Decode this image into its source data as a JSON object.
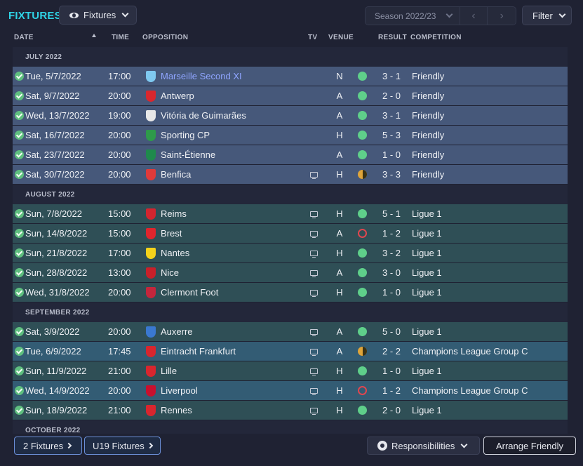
{
  "header": {
    "title": "FIXTURES",
    "view_label": "Fixtures",
    "season_label": "Season 2022/23",
    "filter_label": "Filter"
  },
  "columns": {
    "date": "DATE",
    "time": "TIME",
    "opposition": "OPPOSITION",
    "tv": "TV",
    "venue": "VENUE",
    "result": "RESULT",
    "competition": "COMPETITION"
  },
  "colors": {
    "accent": "#2fd3e6",
    "win": "#5fcf8a",
    "draw": "#e0a53a",
    "loss": "#e0464f"
  },
  "months": [
    {
      "label": "JULY 2022",
      "fixtures": [
        {
          "date": "Tue, 5/7/2022",
          "time": "17:00",
          "opposition": "Marseille Second XI",
          "tv": false,
          "venue": "N",
          "result": "win",
          "score": "3 - 1",
          "competition": "Friendly",
          "type": "friendly",
          "link": true,
          "crest_color": "#7fc9f0",
          "crest_icon": "marseille-crest-icon"
        },
        {
          "date": "Sat, 9/7/2022",
          "time": "20:00",
          "opposition": "Antwerp",
          "tv": false,
          "venue": "A",
          "result": "win",
          "score": "2 - 0",
          "competition": "Friendly",
          "type": "friendly",
          "crest_color": "#d9272e",
          "crest_icon": "antwerp-crest-icon"
        },
        {
          "date": "Wed, 13/7/2022",
          "time": "19:00",
          "opposition": "Vitória de Guimarães",
          "tv": false,
          "venue": "A",
          "result": "win",
          "score": "3 - 1",
          "competition": "Friendly",
          "type": "friendly",
          "crest_color": "#e8e8e8",
          "crest_icon": "guimaraes-crest-icon"
        },
        {
          "date": "Sat, 16/7/2022",
          "time": "20:00",
          "opposition": "Sporting CP",
          "tv": false,
          "venue": "H",
          "result": "win",
          "score": "5 - 3",
          "competition": "Friendly",
          "type": "friendly",
          "crest_color": "#2e9a4a",
          "crest_icon": "sporting-crest-icon"
        },
        {
          "date": "Sat, 23/7/2022",
          "time": "20:00",
          "opposition": "Saint-Étienne",
          "tv": false,
          "venue": "A",
          "result": "win",
          "score": "1 - 0",
          "competition": "Friendly",
          "type": "friendly",
          "crest_color": "#1f8a4c",
          "crest_icon": "saint-etienne-crest-icon"
        },
        {
          "date": "Sat, 30/7/2022",
          "time": "20:00",
          "opposition": "Benfica",
          "tv": true,
          "venue": "H",
          "result": "draw",
          "score": "3 - 3",
          "competition": "Friendly",
          "type": "friendly",
          "crest_color": "#e03a3a",
          "crest_icon": "benfica-crest-icon"
        }
      ]
    },
    {
      "label": "AUGUST 2022",
      "fixtures": [
        {
          "date": "Sun, 7/8/2022",
          "time": "15:00",
          "opposition": "Reims",
          "tv": true,
          "venue": "H",
          "result": "win",
          "score": "5 - 1",
          "competition": "Ligue 1",
          "type": "league",
          "crest_color": "#d3252f",
          "crest_icon": "reims-crest-icon"
        },
        {
          "date": "Sun, 14/8/2022",
          "time": "15:00",
          "opposition": "Brest",
          "tv": true,
          "venue": "A",
          "result": "loss",
          "score": "1 - 2",
          "competition": "Ligue 1",
          "type": "league",
          "crest_color": "#e0252d",
          "crest_icon": "brest-crest-icon"
        },
        {
          "date": "Sun, 21/8/2022",
          "time": "17:00",
          "opposition": "Nantes",
          "tv": true,
          "venue": "H",
          "result": "win",
          "score": "3 - 2",
          "competition": "Ligue 1",
          "type": "league",
          "crest_color": "#f5d21a",
          "crest_icon": "nantes-crest-icon"
        },
        {
          "date": "Sun, 28/8/2022",
          "time": "13:00",
          "opposition": "Nice",
          "tv": true,
          "venue": "A",
          "result": "win",
          "score": "3 - 0",
          "competition": "Ligue 1",
          "type": "league",
          "crest_color": "#c8202a",
          "crest_icon": "nice-crest-icon"
        },
        {
          "date": "Wed, 31/8/2022",
          "time": "20:00",
          "opposition": "Clermont Foot",
          "tv": true,
          "venue": "H",
          "result": "win",
          "score": "1 - 0",
          "competition": "Ligue 1",
          "type": "league",
          "crest_color": "#c4263c",
          "crest_icon": "clermont-crest-icon"
        }
      ]
    },
    {
      "label": "SEPTEMBER 2022",
      "fixtures": [
        {
          "date": "Sat, 3/9/2022",
          "time": "20:00",
          "opposition": "Auxerre",
          "tv": true,
          "venue": "A",
          "result": "win",
          "score": "5 - 0",
          "competition": "Ligue 1",
          "type": "league",
          "crest_color": "#3a78d0",
          "crest_icon": "auxerre-crest-icon"
        },
        {
          "date": "Tue, 6/9/2022",
          "time": "17:45",
          "opposition": "Eintracht Frankfurt",
          "tv": true,
          "venue": "A",
          "result": "draw",
          "score": "2 - 2",
          "competition": "Champions League Group C",
          "type": "cl",
          "crest_color": "#d8262e",
          "crest_icon": "frankfurt-crest-icon"
        },
        {
          "date": "Sun, 11/9/2022",
          "time": "21:00",
          "opposition": "Lille",
          "tv": true,
          "venue": "H",
          "result": "win",
          "score": "1 - 0",
          "competition": "Ligue 1",
          "type": "league",
          "crest_color": "#d8262e",
          "crest_icon": "lille-crest-icon"
        },
        {
          "date": "Wed, 14/9/2022",
          "time": "20:00",
          "opposition": "Liverpool",
          "tv": true,
          "venue": "H",
          "result": "loss",
          "score": "1 - 2",
          "competition": "Champions League Group C",
          "type": "cl",
          "crest_color": "#c8102e",
          "crest_icon": "liverpool-crest-icon"
        },
        {
          "date": "Sun, 18/9/2022",
          "time": "21:00",
          "opposition": "Rennes",
          "tv": true,
          "venue": "H",
          "result": "win",
          "score": "2 - 0",
          "competition": "Ligue 1",
          "type": "league",
          "crest_color": "#d8262e",
          "crest_icon": "rennes-crest-icon"
        }
      ]
    },
    {
      "label": "OCTOBER 2022",
      "fixtures": []
    }
  ],
  "footer": {
    "fixtures_link": "2 Fixtures",
    "u19_link": "U19 Fixtures",
    "responsibilities_label": "Responsibilities",
    "arrange_label": "Arrange Friendly"
  }
}
